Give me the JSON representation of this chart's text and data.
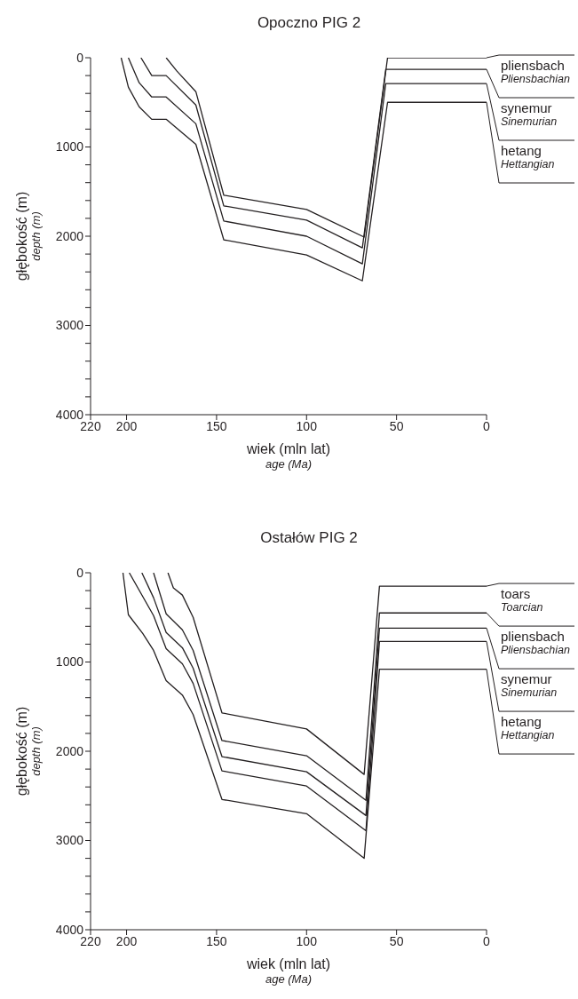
{
  "chart_data": [
    {
      "type": "line",
      "title": "Opoczno PIG 2",
      "xlabel": "wiek (mln lat)\nage (Ma)",
      "ylabel": "głębokość (m)\ndepth (m)",
      "xlim": [
        220,
        0
      ],
      "xticks": [
        220,
        200,
        150,
        100,
        50,
        0
      ],
      "ylim": [
        4000,
        0
      ],
      "yticks": [
        0,
        {
          "value": 200,
          "label": null
        },
        {
          "value": 400,
          "label": null
        },
        {
          "value": 600,
          "label": null
        },
        {
          "value": 800,
          "label": null
        },
        1000,
        {
          "value": 1200,
          "label": null
        },
        {
          "value": 1400,
          "label": null
        },
        {
          "value": 1600,
          "label": null
        },
        {
          "value": 1800,
          "label": null
        },
        2000,
        {
          "value": 2200,
          "label": null
        },
        {
          "value": 2400,
          "label": null
        },
        {
          "value": 2600,
          "label": null
        },
        {
          "value": 2800,
          "label": null
        },
        3000,
        {
          "value": 3200,
          "label": null
        },
        {
          "value": 3400,
          "label": null
        },
        {
          "value": 3600,
          "label": null
        },
        {
          "value": 3800,
          "label": null
        },
        4000
      ],
      "series": [
        {
          "color": "#231f20",
          "x": [
            178,
            172,
            161.5,
            146,
            100,
            68,
            55,
            0
          ],
          "values": [
            0,
            150,
            380,
            1540,
            1700,
            2010,
            0,
            0
          ]
        },
        {
          "color": "#231f20",
          "x": [
            192,
            186,
            178,
            161.5,
            146,
            100,
            69,
            56,
            0
          ],
          "values": [
            0,
            200,
            200,
            530,
            1660,
            1820,
            2130,
            130,
            130
          ]
        },
        {
          "color": "#231f20",
          "x": [
            199,
            193,
            186,
            178,
            161.5,
            146,
            100,
            69,
            56,
            0
          ],
          "values": [
            0,
            280,
            440,
            440,
            740,
            1830,
            2000,
            2310,
            290,
            290
          ]
        },
        {
          "color": "#231f20",
          "x": [
            203,
            199,
            193,
            186,
            178,
            161.5,
            146,
            100,
            69,
            55,
            0
          ],
          "values": [
            0,
            330,
            550,
            690,
            690,
            970,
            2040,
            2210,
            2500,
            500,
            500
          ]
        }
      ],
      "annotations": [
        "pliensbach\nPliensbachian",
        "synemur\nSinemurian",
        "hetang\nHettangian"
      ]
    },
    {
      "type": "line",
      "title": "Ostałów PIG 2",
      "xlabel": "wiek (mln lat)\nage (Ma)",
      "ylabel": "głębokość (m)\ndepth (m)",
      "xlim": [
        220,
        0
      ],
      "xticks": [
        220,
        200,
        150,
        100,
        50,
        0
      ],
      "ylim": [
        4000,
        0
      ],
      "yticks": [
        0,
        {
          "value": 200,
          "label": null
        },
        {
          "value": 400,
          "label": null
        },
        {
          "value": 600,
          "label": null
        },
        {
          "value": 800,
          "label": null
        },
        1000,
        {
          "value": 1200,
          "label": null
        },
        {
          "value": 1400,
          "label": null
        },
        {
          "value": 1600,
          "label": null
        },
        {
          "value": 1800,
          "label": null
        },
        2000,
        {
          "value": 2200,
          "label": null
        },
        {
          "value": 2400,
          "label": null
        },
        {
          "value": 2600,
          "label": null
        },
        {
          "value": 2800,
          "label": null
        },
        3000,
        {
          "value": 3200,
          "label": null
        },
        {
          "value": 3400,
          "label": null
        },
        {
          "value": 3600,
          "label": null
        },
        {
          "value": 3800,
          "label": null
        },
        4000
      ],
      "series": [
        {
          "color": "#231f20",
          "x": [
            177,
            174,
            169,
            163,
            147,
            100,
            68,
            59.5,
            0
          ],
          "values": [
            0,
            170,
            250,
            500,
            1570,
            1750,
            2260,
            150,
            150
          ]
        },
        {
          "color": "#231f20",
          "x": [
            185,
            178,
            169,
            163,
            147,
            100,
            67,
            59.5,
            0
          ],
          "values": [
            0,
            460,
            640,
            870,
            1880,
            2050,
            2550,
            450,
            450
          ]
        },
        {
          "color": "#231f20",
          "x": [
            191.5,
            185,
            178,
            169,
            163,
            147,
            100,
            67,
            59.5,
            0
          ],
          "values": [
            0,
            280,
            670,
            840,
            1070,
            2060,
            2230,
            2720,
            620,
            620
          ]
        },
        {
          "color": "#231f20",
          "x": [
            198.5,
            185,
            178,
            169,
            163,
            147,
            100,
            67,
            59.5,
            0
          ],
          "values": [
            0,
            480,
            850,
            1020,
            1240,
            2220,
            2390,
            2890,
            770,
            770
          ]
        },
        {
          "color": "#231f20",
          "x": [
            202,
            199,
            191,
            185,
            178,
            169,
            163,
            147,
            100,
            68,
            59.5,
            0
          ],
          "values": [
            0,
            470,
            680,
            870,
            1210,
            1370,
            1590,
            2540,
            2700,
            3200,
            1080,
            1080
          ]
        }
      ],
      "annotations": [
        "toars\nToarcian",
        "pliensbach\nPliensbachian",
        "synemur\nSinemurian",
        "hetang\nHettangian"
      ]
    }
  ]
}
